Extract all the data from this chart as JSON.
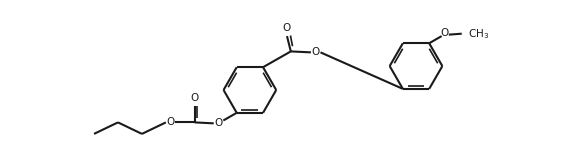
{
  "bg_color": "#ffffff",
  "line_color": "#1a1a1a",
  "lw": 1.5,
  "lw2": 1.2,
  "figsize": [
    5.62,
    1.58
  ],
  "dpi": 100,
  "r": 0.55,
  "xlim": [
    -0.3,
    10.3
  ],
  "ylim": [
    -0.5,
    2.8
  ],
  "font_size": 7.5,
  "o_label": "O",
  "ch3_label": "OCH$_3$"
}
